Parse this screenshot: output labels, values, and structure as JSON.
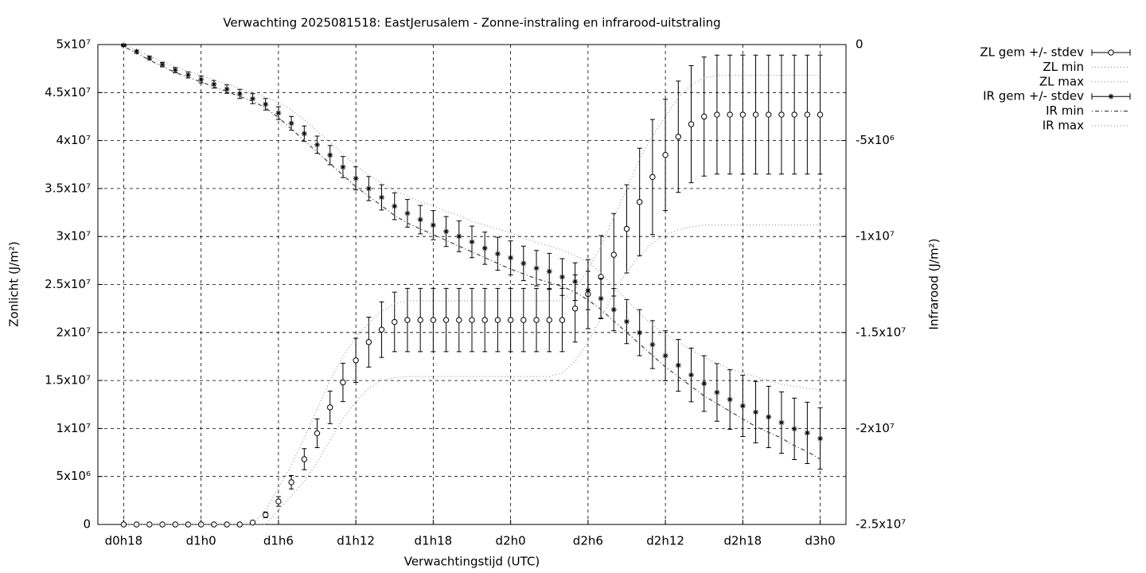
{
  "chart_data": {
    "type": "errorbar-line",
    "title": "Verwachting 2025081518: EastJerusalem - Zonne-instraling en infrarood-uitstraling",
    "xlabel": "Verwachtingstijd (UTC)",
    "ylabel": "Zonlicht (J/m²)",
    "y2label": "Infrarood (J/m²)",
    "grid": true,
    "legend": "right",
    "xlim": [
      16,
      74
    ],
    "xticks": [
      {
        "value": 18,
        "label": "d0h18"
      },
      {
        "value": 24,
        "label": "d1h0"
      },
      {
        "value": 30,
        "label": "d1h6"
      },
      {
        "value": 36,
        "label": "d1h12"
      },
      {
        "value": 42,
        "label": "d1h18"
      },
      {
        "value": 48,
        "label": "d2h0"
      },
      {
        "value": 54,
        "label": "d2h6"
      },
      {
        "value": 60,
        "label": "d2h12"
      },
      {
        "value": 66,
        "label": "d2h18"
      },
      {
        "value": 72,
        "label": "d3h0"
      }
    ],
    "ylim": [
      0,
      50000000.0
    ],
    "yticks": [
      0,
      {
        "value": 5000000.0,
        "label": "5x10⁶"
      },
      {
        "value": 10000000.0,
        "label": "1x10⁷"
      },
      {
        "value": 15000000.0,
        "label": "1.5x10⁷"
      },
      {
        "value": 20000000.0,
        "label": "2x10⁷"
      },
      {
        "value": 25000000.0,
        "label": "2.5x10⁷"
      },
      {
        "value": 30000000.0,
        "label": "3x10⁷"
      },
      {
        "value": 35000000.0,
        "label": "3.5x10⁷"
      },
      {
        "value": 40000000.0,
        "label": "4x10⁷"
      },
      {
        "value": 45000000.0,
        "label": "4.5x10⁷"
      },
      {
        "value": 50000000.0,
        "label": "5x10⁷"
      }
    ],
    "y2lim": [
      -25000000.0,
      0
    ],
    "y2ticks": [
      {
        "value": -25000000.0,
        "label": "-2.5x10⁷"
      },
      {
        "value": -20000000.0,
        "label": "-2x10⁷"
      },
      {
        "value": -15000000.0,
        "label": "-1.5x10⁷"
      },
      {
        "value": -10000000.0,
        "label": "-1x10⁷"
      },
      {
        "value": -5000000.0,
        "label": "-5x10⁶"
      },
      0
    ],
    "x": [
      18,
      19,
      20,
      21,
      22,
      23,
      24,
      25,
      26,
      27,
      28,
      29,
      30,
      31,
      32,
      33,
      34,
      35,
      36,
      37,
      38,
      39,
      40,
      41,
      42,
      43,
      44,
      45,
      46,
      47,
      48,
      49,
      50,
      51,
      52,
      53,
      54,
      55,
      56,
      57,
      58,
      59,
      60,
      61,
      62,
      63,
      64,
      65,
      66,
      67,
      68,
      69,
      70,
      71,
      72
    ],
    "series": [
      {
        "name": "ZL gem +/- stdev",
        "color": "#000000",
        "style": "errorbars",
        "marker": "circle",
        "values": [
          0,
          0,
          0,
          0,
          0,
          0,
          0,
          0,
          0,
          0,
          200000.0,
          1000000.0,
          2400000.0,
          4400000.0,
          6800000.0,
          9500000.0,
          12200000.0,
          14800000.0,
          17100000.0,
          19000000.0,
          20300000.0,
          21100000.0,
          21300000.0,
          21300000.0,
          21300000.0,
          21300000.0,
          21300000.0,
          21300000.0,
          21300000.0,
          21300000.0,
          21300000.0,
          21300000.0,
          21300000.0,
          21300000.0,
          21300000.0,
          22500000.0,
          24000000.0,
          25800000.0,
          28100000.0,
          30800000.0,
          33600000.0,
          36200000.0,
          38500000.0,
          40400000.0,
          41700000.0,
          42500000.0,
          42700000.0,
          42700000.0,
          42700000.0,
          42700000.0,
          42700000.0,
          42700000.0,
          42700000.0,
          42700000.0,
          42700000.0
        ],
        "errors": [
          0,
          0,
          0,
          0,
          0,
          0,
          0,
          0,
          0,
          0,
          100000.0,
          300000.0,
          500000.0,
          700000.0,
          1100000.0,
          1500000.0,
          1700000.0,
          2000000.0,
          2300000.0,
          2600000.0,
          2900000.0,
          3100000.0,
          3300000.0,
          3300000.0,
          3300000.0,
          3300000.0,
          3300000.0,
          3300000.0,
          3300000.0,
          3300000.0,
          3300000.0,
          3300000.0,
          3300000.0,
          3300000.0,
          3300000.0,
          3500000.0,
          3600000.0,
          4300000.0,
          4300000.0,
          4600000.0,
          5600000.0,
          6000000.0,
          5800000.0,
          5800000.0,
          6100000.0,
          6200000.0,
          6200000.0,
          6200000.0,
          6200000.0,
          6200000.0,
          6200000.0,
          6200000.0,
          6200000.0,
          6200000.0,
          6200000.0
        ]
      },
      {
        "name": "ZL min",
        "color": "#999999",
        "style": "dotted",
        "values": [
          0,
          0,
          0,
          0,
          0,
          0,
          0,
          0,
          0,
          0,
          0,
          0,
          1500000.0,
          3000000.0,
          4500000.0,
          6500000.0,
          8800000.0,
          11000000.0,
          12800000.0,
          14200000.0,
          15000000.0,
          15300000.0,
          15400000.0,
          15400000.0,
          15400000.0,
          15400000.0,
          15400000.0,
          15400000.0,
          15400000.0,
          15400000.0,
          15400000.0,
          15400000.0,
          15400000.0,
          15400000.0,
          15800000.0,
          17000000.0,
          19000000.0,
          21500000.0,
          24000000.0,
          26300000.0,
          28000000.0,
          29300000.0,
          30200000.0,
          30700000.0,
          31000000.0,
          31200000.0,
          31200000.0,
          31200000.0,
          31200000.0,
          31200000.0,
          31200000.0,
          31200000.0,
          31200000.0,
          31200000.0,
          31200000.0
        ]
      },
      {
        "name": "ZL max",
        "color": "#999999",
        "style": "dotted",
        "values": [
          0,
          0,
          0,
          0,
          0,
          0,
          0,
          0,
          0,
          0,
          0,
          1500000.0,
          3800000.0,
          6200000.0,
          9000000.0,
          12000000.0,
          15000000.0,
          17500000.0,
          19500000.0,
          21000000.0,
          22200000.0,
          23000000.0,
          23300000.0,
          23300000.0,
          23300000.0,
          23300000.0,
          23300000.0,
          23300000.0,
          23300000.0,
          23300000.0,
          23300000.0,
          23300000.0,
          23300000.0,
          23300000.0,
          23300000.0,
          24500000.0,
          26500000.0,
          29000000.0,
          32000000.0,
          35000000.0,
          38000000.0,
          40500000.0,
          42500000.0,
          44500000.0,
          45800000.0,
          46500000.0,
          46800000.0,
          46800000.0,
          46800000.0,
          46800000.0,
          46800000.0,
          46800000.0,
          46800000.0,
          46800000.0,
          46800000.0
        ]
      },
      {
        "name": "IR gem +/- stdev",
        "color": "#000000",
        "style": "errorbars",
        "marker": "star",
        "axis": "y2",
        "values": [
          -40000.0,
          -370000.0,
          -700000.0,
          -1040000.0,
          -1330000.0,
          -1580000.0,
          -1820000.0,
          -2070000.0,
          -2320000.0,
          -2570000.0,
          -2820000.0,
          -3110000.0,
          -3570000.0,
          -4100000.0,
          -4640000.0,
          -5220000.0,
          -5760000.0,
          -6380000.0,
          -6970000.0,
          -7500000.0,
          -7960000.0,
          -8420000.0,
          -8790000.0,
          -9120000.0,
          -9410000.0,
          -9740000.0,
          -9990000.0,
          -10280000.0,
          -10610000.0,
          -10900000.0,
          -11110000.0,
          -11400000.0,
          -11650000.0,
          -11820000.0,
          -12110000.0,
          -12350000.0,
          -12810000.0,
          -13230000.0,
          -13810000.0,
          -14430000.0,
          -15010000.0,
          -15630000.0,
          -16210000.0,
          -16710000.0,
          -17210000.0,
          -17660000.0,
          -18120000.0,
          -18490000.0,
          -18820000.0,
          -19150000.0,
          -19400000.0,
          -19690000.0,
          -20020000.0,
          -20230000.0,
          -20520000.0
        ],
        "errors": [
          50000.0,
          80000.0,
          100000.0,
          120000.0,
          140000.0,
          160000.0,
          180000.0,
          200000.0,
          220000.0,
          240000.0,
          260000.0,
          300000.0,
          330000.0,
          360000.0,
          400000.0,
          450000.0,
          500000.0,
          550000.0,
          600000.0,
          630000.0,
          660000.0,
          700000.0,
          720000.0,
          740000.0,
          760000.0,
          780000.0,
          800000.0,
          820000.0,
          840000.0,
          860000.0,
          880000.0,
          900000.0,
          920000.0,
          940000.0,
          960000.0,
          980000.0,
          1000000.0,
          1050000.0,
          1100000.0,
          1150000.0,
          1200000.0,
          1250000.0,
          1300000.0,
          1350000.0,
          1400000.0,
          1450000.0,
          1500000.0,
          1550000.0,
          1600000.0,
          1600000.0,
          1600000.0,
          1600000.0,
          1600000.0,
          1600000.0,
          1600000.0
        ]
      },
      {
        "name": "IR min",
        "color": "#444444",
        "style": "dashdot",
        "axis": "y2",
        "values": [
          -100000.0,
          -450000.0,
          -800000.0,
          -1150000.0,
          -1450000.0,
          -1700000.0,
          -1950000.0,
          -2200000.0,
          -2450000.0,
          -2700000.0,
          -2950000.0,
          -3300000.0,
          -3800000.0,
          -4400000.0,
          -5000000.0,
          -5600000.0,
          -6200000.0,
          -6800000.0,
          -7400000.0,
          -7900000.0,
          -8400000.0,
          -8900000.0,
          -9300000.0,
          -9600000.0,
          -9900000.0,
          -10200000.0,
          -10500000.0,
          -10800000.0,
          -11100000.0,
          -11400000.0,
          -11700000.0,
          -11950000.0,
          -12200000.0,
          -12400000.0,
          -12600000.0,
          -12900000.0,
          -13300000.0,
          -13800000.0,
          -14400000.0,
          -15000000.0,
          -15600000.0,
          -16200000.0,
          -16800000.0,
          -17300000.0,
          -17800000.0,
          -18300000.0,
          -18700000.0,
          -19100000.0,
          -19500000.0,
          -19900000.0,
          -20200000.0,
          -20500000.0,
          -20900000.0,
          -21200000.0,
          -21600000.0
        ]
      },
      {
        "name": "IR max",
        "color": "#999999",
        "style": "dotted",
        "axis": "y2",
        "values": [
          0,
          -300000.0,
          -600000.0,
          -900000.0,
          -1150000.0,
          -1400000.0,
          -1600000.0,
          -1850000.0,
          -2050000.0,
          -2300000.0,
          -2500000.0,
          -2750000.0,
          -3000000.0,
          -3400000.0,
          -3900000.0,
          -4500000.0,
          -5100000.0,
          -5700000.0,
          -6300000.0,
          -6800000.0,
          -7200000.0,
          -7600000.0,
          -7900000.0,
          -8200000.0,
          -8400000.0,
          -8700000.0,
          -8900000.0,
          -9200000.0,
          -9400000.0,
          -9600000.0,
          -9800000.0,
          -10100000.0,
          -10300000.0,
          -10500000.0,
          -10700000.0,
          -11000000.0,
          -11300000.0,
          -11900000.0,
          -12600000.0,
          -13300000.0,
          -14000000.0,
          -14600000.0,
          -15100000.0,
          -15500000.0,
          -15900000.0,
          -16300000.0,
          -16600000.0,
          -16900000.0,
          -17100000.0,
          -17300000.0,
          -17500000.0,
          -17700000.0,
          -17800000.0,
          -17900000.0,
          -18000000.0
        ]
      }
    ]
  }
}
